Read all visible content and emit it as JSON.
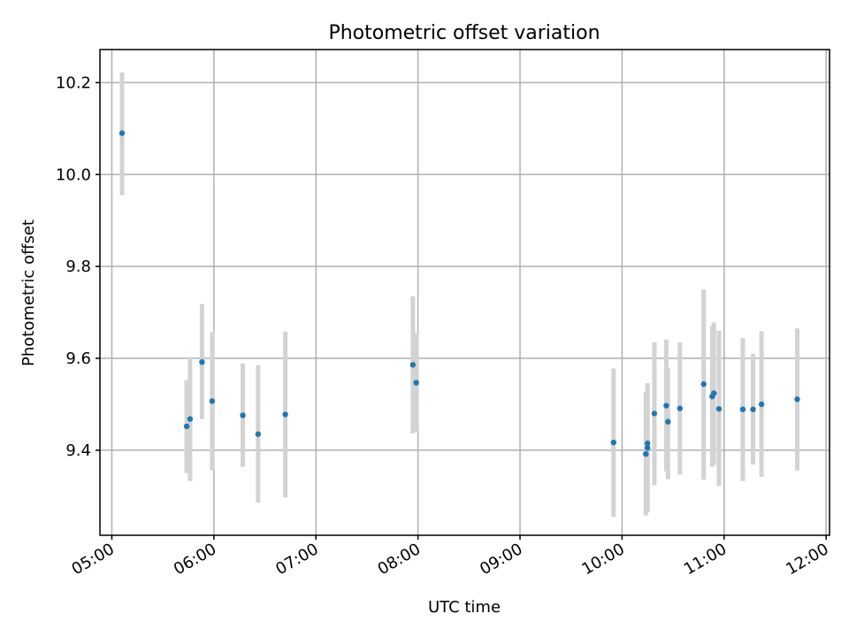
{
  "chart_data": {
    "type": "scatter",
    "title": "Photometric offset variation",
    "xlabel": "UTC time",
    "ylabel": "Photometric offset",
    "xlim": [
      "04:53",
      "12:02"
    ],
    "ylim": [
      9.215,
      10.272
    ],
    "x_ticks": [
      "05:00",
      "06:00",
      "07:00",
      "08:00",
      "09:00",
      "10:00",
      "11:00",
      "12:00"
    ],
    "y_ticks": [
      9.4,
      9.6,
      9.8,
      10.0,
      10.2
    ],
    "y_tick_labels": [
      "9.4",
      "9.6",
      "9.8",
      "10.0",
      "10.2"
    ],
    "grid": true,
    "marker_color": "#1f77b4",
    "errorbar_color": "#d3d3d3",
    "series": [
      {
        "points": [
          {
            "t": "05:06",
            "y": 10.09,
            "lo": 9.955,
            "hi": 10.222
          },
          {
            "t": "05:44",
            "y": 9.452,
            "lo": 9.35,
            "hi": 9.553
          },
          {
            "t": "05:46",
            "y": 9.468,
            "lo": 9.333,
            "hi": 9.603
          },
          {
            "t": "05:53",
            "y": 9.592,
            "lo": 9.468,
            "hi": 9.718
          },
          {
            "t": "05:59",
            "y": 9.507,
            "lo": 9.356,
            "hi": 9.657
          },
          {
            "t": "06:17",
            "y": 9.476,
            "lo": 9.364,
            "hi": 9.589
          },
          {
            "t": "06:26",
            "y": 9.435,
            "lo": 9.286,
            "hi": 9.585
          },
          {
            "t": "06:42",
            "y": 9.478,
            "lo": 9.297,
            "hi": 9.658
          },
          {
            "t": "07:57",
            "y": 9.586,
            "lo": 9.437,
            "hi": 9.735
          },
          {
            "t": "07:59",
            "y": 9.547,
            "lo": 9.44,
            "hi": 9.655
          },
          {
            "t": "09:55",
            "y": 9.417,
            "lo": 9.255,
            "hi": 9.578
          },
          {
            "t": "10:14",
            "y": 9.392,
            "lo": 9.258,
            "hi": 9.527
          },
          {
            "t": "10:15",
            "y": 9.405,
            "lo": 9.265,
            "hi": 9.544
          },
          {
            "t": "10:15",
            "y": 9.415,
            "lo": 9.285,
            "hi": 9.546
          },
          {
            "t": "10:19",
            "y": 9.48,
            "lo": 9.324,
            "hi": 9.635
          },
          {
            "t": "10:26",
            "y": 9.497,
            "lo": 9.354,
            "hi": 9.641
          },
          {
            "t": "10:27",
            "y": 9.462,
            "lo": 9.337,
            "hi": 9.58
          },
          {
            "t": "10:34",
            "y": 9.491,
            "lo": 9.347,
            "hi": 9.635
          },
          {
            "t": "10:48",
            "y": 9.544,
            "lo": 9.336,
            "hi": 9.75
          },
          {
            "t": "10:53",
            "y": 9.517,
            "lo": 9.364,
            "hi": 9.67
          },
          {
            "t": "10:54",
            "y": 9.524,
            "lo": 9.368,
            "hi": 9.678
          },
          {
            "t": "10:57",
            "y": 9.49,
            "lo": 9.322,
            "hi": 9.66
          },
          {
            "t": "11:11",
            "y": 9.489,
            "lo": 9.333,
            "hi": 9.644
          },
          {
            "t": "11:17",
            "y": 9.489,
            "lo": 9.369,
            "hi": 9.61
          },
          {
            "t": "11:22",
            "y": 9.5,
            "lo": 9.342,
            "hi": 9.659
          },
          {
            "t": "11:43",
            "y": 9.511,
            "lo": 9.356,
            "hi": 9.665
          }
        ]
      }
    ]
  }
}
